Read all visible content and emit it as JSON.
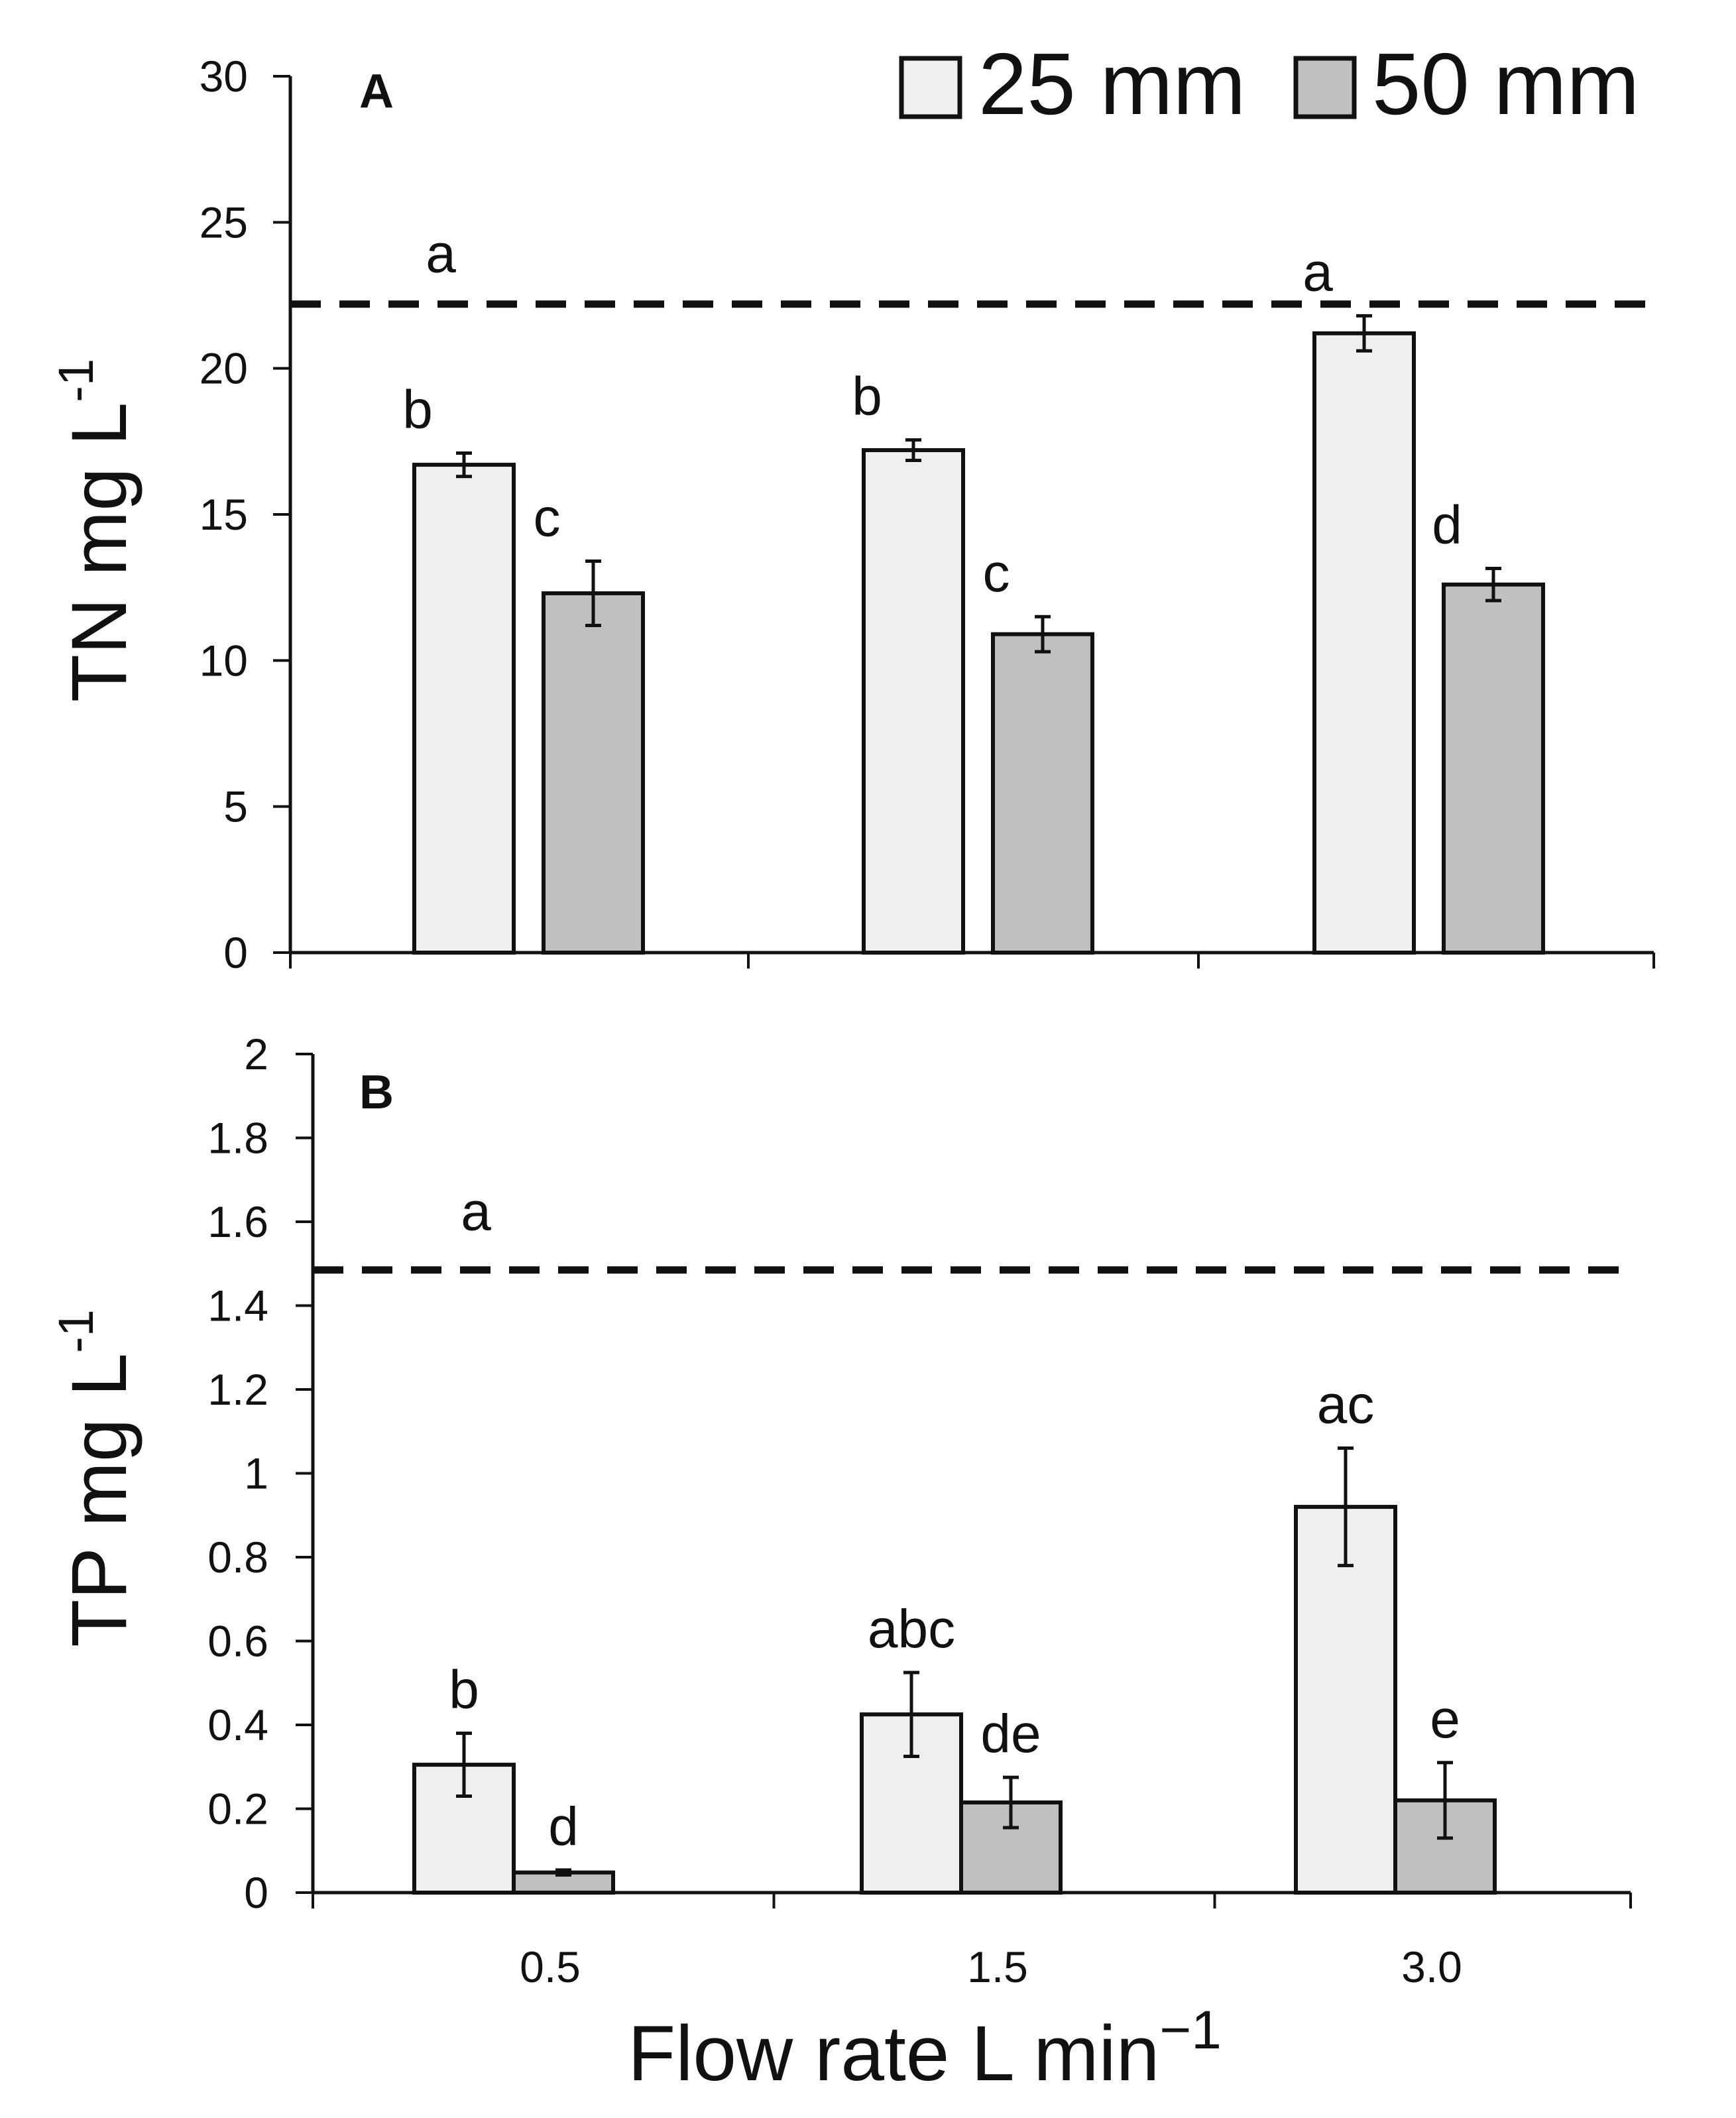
{
  "chart_data": [
    {
      "type": "bar",
      "panel_label": "A",
      "ylabel": "TN mg  L",
      "ylabel_superscript": "-1",
      "ylim": [
        0,
        30
      ],
      "yticks": [
        "0",
        "5",
        "10",
        "15",
        "20",
        "25",
        "30"
      ],
      "ytick_values": [
        0,
        5,
        10,
        15,
        20,
        25,
        30
      ],
      "categories": [
        "0.5",
        "1.5",
        "3.0"
      ],
      "show_category_labels": false,
      "series": [
        {
          "name": "25 mm",
          "color": "#efefef",
          "values": [
            16.7,
            17.2,
            21.2
          ],
          "errors": [
            0.4,
            0.35,
            0.6
          ],
          "letters": [
            "b",
            "b",
            "a"
          ]
        },
        {
          "name": "50 mm",
          "color": "#c0c0c0",
          "values": [
            12.3,
            10.9,
            12.6
          ],
          "errors": [
            1.1,
            0.6,
            0.55
          ],
          "letters": [
            "c",
            "c",
            "d"
          ]
        }
      ],
      "reference_line": {
        "value": 22.2,
        "letter": "a",
        "style": "dashed"
      }
    },
    {
      "type": "bar",
      "panel_label": "B",
      "ylabel": "TP mg  L",
      "ylabel_superscript": "-1",
      "ylim": [
        0,
        2
      ],
      "yticks": [
        "0",
        "0.2",
        "0.4",
        "0.6",
        "0.8",
        "1",
        "1.2",
        "1.4",
        "1.6",
        "1.8",
        "2"
      ],
      "ytick_values": [
        0,
        0.2,
        0.4,
        0.6,
        0.8,
        1,
        1.2,
        1.4,
        1.6,
        1.8,
        2
      ],
      "categories": [
        "0.5",
        "1.5",
        "3.0"
      ],
      "show_category_labels": true,
      "series": [
        {
          "name": "25 mm",
          "color": "#efefef",
          "values": [
            0.305,
            0.425,
            0.92
          ],
          "errors": [
            0.075,
            0.1,
            0.14
          ],
          "letters": [
            "b",
            "abc",
            "ac"
          ]
        },
        {
          "name": "50 mm",
          "color": "#c0c0c0",
          "values": [
            0.048,
            0.215,
            0.22
          ],
          "errors": [
            0.006,
            0.06,
            0.09
          ],
          "letters": [
            "d",
            "de",
            "e"
          ]
        }
      ],
      "reference_line": {
        "value": 1.485,
        "letter": "a",
        "style": "dashed"
      }
    }
  ],
  "legend": {
    "position": "top-right",
    "items": [
      {
        "label": "25 mm",
        "color": "#efefef"
      },
      {
        "label": "50 mm",
        "color": "#c0c0c0"
      }
    ]
  },
  "xlabel": "Flow rate L min",
  "xlabel_superscript": "−1"
}
